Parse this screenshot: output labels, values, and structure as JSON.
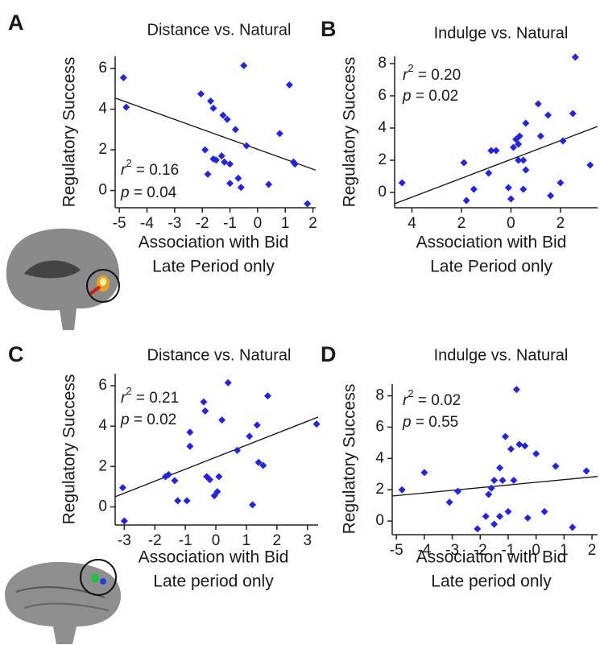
{
  "chart_data": [
    {
      "type": "scatter",
      "panel": "A",
      "title": "Distance vs. Natural",
      "ylabel": "Regulatory Success",
      "xlabel": [
        "Association with Bid",
        "Late Period only"
      ],
      "color": "#2222ee",
      "x": [
        -4.85,
        -4.75,
        -2.05,
        -1.7,
        -1.6,
        -1.25,
        -1.1,
        -0.8,
        -0.5,
        -0.4,
        0.8,
        1.15,
        -1.9,
        -1.8,
        -1.5,
        -1.3,
        -1.2,
        -1.0,
        -1.0,
        -0.7,
        -0.6,
        0.4,
        1.3,
        1.35,
        1.8,
        -1.6
      ],
      "values": [
        5.55,
        4.1,
        4.75,
        4.4,
        4.05,
        3.7,
        3.5,
        3.0,
        6.15,
        2.2,
        2.8,
        5.2,
        2.0,
        0.8,
        1.5,
        1.7,
        1.4,
        1.3,
        0.35,
        0.6,
        0.15,
        0.3,
        1.4,
        1.3,
        -0.65,
        1.55
      ],
      "fit": {
        "x": [
          -5.15,
          2.1
        ],
        "y": [
          4.55,
          1.0
        ]
      },
      "xlim": [
        -5.15,
        2.1
      ],
      "ylim": [
        -0.85,
        6.6
      ],
      "xticks": [
        -5,
        -4,
        -3,
        -2,
        -1,
        0,
        1,
        2
      ],
      "yticks": [
        0,
        2,
        4,
        6
      ],
      "annotation": {
        "r_symbol": "r",
        "r_power": "2",
        "r_text": " = 0.16",
        "p_symbol": "p",
        "p_text": " = 0.04"
      }
    },
    {
      "type": "scatter",
      "panel": "B",
      "title": "Indulge vs. Natural",
      "ylabel": "Regulatory Success",
      "xlabel": [
        "Association with Bid",
        "Late Period only"
      ],
      "color": "#2222ee",
      "x": [
        -4.4,
        -1.9,
        -1.8,
        -1.5,
        -0.9,
        -0.8,
        -0.6,
        -0.1,
        0.0,
        0.2,
        0.1,
        0.3,
        0.35,
        0.5,
        0.5,
        0.6,
        0.6,
        1.1,
        1.2,
        1.5,
        1.6,
        2.0,
        2.1,
        2.5,
        2.6,
        3.2,
        0.3
      ],
      "values": [
        0.6,
        1.85,
        -0.5,
        0.2,
        1.2,
        2.6,
        2.6,
        0.3,
        -0.4,
        3.3,
        2.8,
        2.0,
        3.5,
        2.0,
        0.2,
        1.4,
        4.3,
        5.5,
        3.5,
        4.8,
        -0.2,
        0.6,
        3.2,
        4.9,
        8.4,
        1.7,
        3.0
      ],
      "fit": {
        "x": [
          -4.7,
          3.5
        ],
        "y": [
          -0.7,
          4.1
        ]
      },
      "xlim": [
        -4.7,
        3.5
      ],
      "ylim": [
        -0.95,
        8.45
      ],
      "xticks": [
        {
          "value": -4,
          "label": "4"
        },
        {
          "value": -2,
          "label": "2"
        },
        0,
        2
      ],
      "yticks": [
        0,
        2,
        4,
        6,
        8
      ],
      "annotation": {
        "r_symbol": "r",
        "r_power": "2",
        "r_text": " = 0.20",
        "p_symbol": "p",
        "p_text": " = 0.02"
      }
    },
    {
      "type": "scatter",
      "panel": "C",
      "title": "Distance vs. Natural",
      "ylabel": "Regulatory Success",
      "xlabel": [
        "Association with Bid",
        "Late period only"
      ],
      "color": "#2222ee",
      "x": [
        -3.05,
        -3.0,
        -1.65,
        -1.55,
        -1.35,
        -1.25,
        -0.95,
        -0.85,
        -0.85,
        -0.4,
        -0.35,
        -0.3,
        -0.2,
        -0.05,
        0.05,
        0.1,
        0.2,
        0.4,
        0.7,
        1.1,
        1.2,
        1.35,
        1.4,
        1.55,
        1.7,
        3.3
      ],
      "values": [
        0.95,
        -0.7,
        1.5,
        1.6,
        1.3,
        0.3,
        0.3,
        3.0,
        3.7,
        5.2,
        4.75,
        1.5,
        1.35,
        0.55,
        0.75,
        1.5,
        4.3,
        6.15,
        2.8,
        3.5,
        0.1,
        4.05,
        2.2,
        2.05,
        5.5,
        4.1
      ],
      "fit": {
        "x": [
          -3.3,
          3.35
        ],
        "y": [
          0.5,
          4.45
        ]
      },
      "xlim": [
        -3.3,
        3.35
      ],
      "ylim": [
        -0.9,
        6.6
      ],
      "xticks": [
        -3,
        -2,
        -1,
        0,
        1,
        2,
        3
      ],
      "yticks": [
        0,
        2,
        4,
        6
      ],
      "annotation": {
        "r_symbol": "r",
        "r_power": "2",
        "r_text": " = 0.21",
        "p_symbol": "p",
        "p_text": " = 0.02"
      }
    },
    {
      "type": "scatter",
      "panel": "D",
      "title": "Indulge vs. Natural",
      "ylabel": "Regulatory Success",
      "xlabel": [
        "Association with Bid",
        "Late period only"
      ],
      "color": "#2222ee",
      "x": [
        -4.8,
        -4.0,
        -3.1,
        -2.8,
        -2.1,
        -1.8,
        -1.7,
        -1.6,
        -1.5,
        -1.5,
        -1.3,
        -1.2,
        -1.3,
        -1.1,
        -1.0,
        -0.9,
        -0.8,
        -0.7,
        -0.6,
        -0.4,
        -0.3,
        0.0,
        0.3,
        0.7,
        1.3,
        1.8
      ],
      "values": [
        2.0,
        3.1,
        1.2,
        1.9,
        -0.5,
        0.3,
        1.7,
        2.1,
        -0.2,
        2.6,
        3.4,
        2.6,
        0.3,
        5.4,
        0.6,
        4.6,
        2.6,
        8.4,
        4.9,
        4.8,
        0.2,
        4.3,
        0.6,
        3.5,
        -0.4,
        3.2
      ],
      "fit": {
        "x": [
          -5.15,
          2.2
        ],
        "y": [
          1.6,
          2.85
        ]
      },
      "xlim": [
        -5.15,
        2.2
      ],
      "ylim": [
        -0.87,
        8.75
      ],
      "xticks": [
        -5,
        -4,
        -3,
        -2,
        -1,
        0,
        1,
        2
      ],
      "yticks": [
        0,
        2,
        4,
        6,
        8
      ],
      "annotation": {
        "r_symbol": "r",
        "r_power": "2",
        "r_text": " = 0.02",
        "p_symbol": "p",
        "p_text": " = 0.55"
      }
    }
  ]
}
